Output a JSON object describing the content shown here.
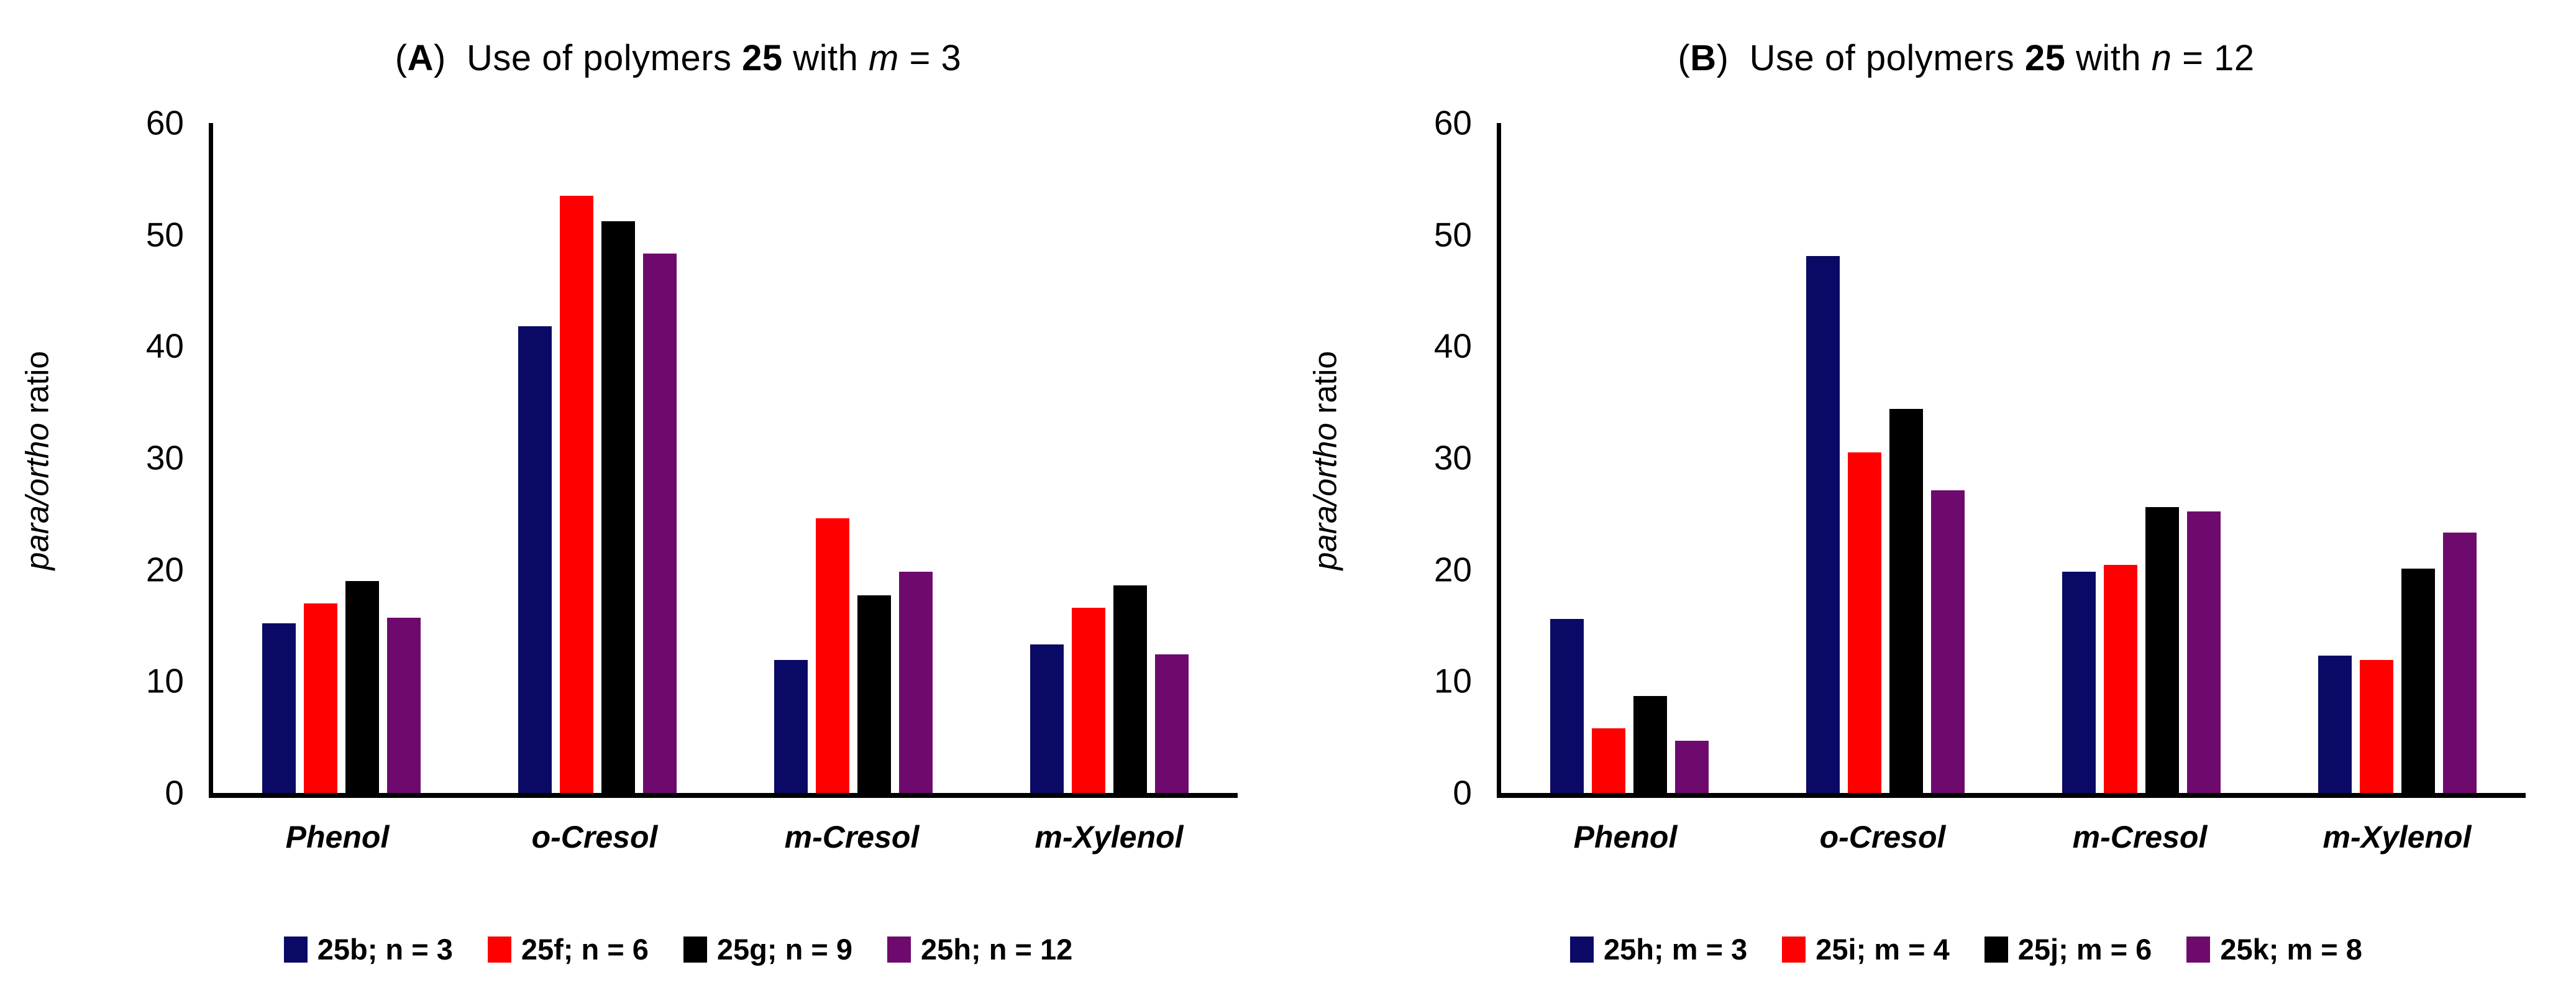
{
  "colors": {
    "navy": "#0A0A66",
    "red": "#FE0000",
    "black": "#000000",
    "purple": "#6E0A6E",
    "axis": "#000000",
    "background": "#FFFFFF"
  },
  "chart_data": [
    {
      "type": "bar",
      "panel": "A",
      "title_text": "(A)  Use of polymers 25 with m = 3",
      "title_segments": [
        {
          "text": "(",
          "style": "normal"
        },
        {
          "text": "A",
          "style": "bold"
        },
        {
          "text": ")  Use of polymers ",
          "style": "normal"
        },
        {
          "text": "25",
          "style": "bold"
        },
        {
          "text": " with ",
          "style": "normal"
        },
        {
          "text": "m",
          "style": "italic"
        },
        {
          "text": " = 3",
          "style": "normal"
        }
      ],
      "ylabel_italic": "para/ortho",
      "ylabel_regular": " ratio",
      "ylim": [
        0,
        60
      ],
      "yticks": [
        0,
        10,
        20,
        30,
        40,
        50,
        60
      ],
      "grid": false,
      "legend_position": "bottom",
      "categories": [
        "Phenol",
        "o-Cresol",
        "m-Cresol",
        "m-Xylenol"
      ],
      "series": [
        {
          "name": "25b; n = 3",
          "color_key": "navy",
          "values": [
            15.2,
            41.8,
            11.9,
            13.3
          ]
        },
        {
          "name": "25f; n = 6",
          "color_key": "red",
          "values": [
            17.0,
            53.5,
            24.6,
            16.6
          ]
        },
        {
          "name": "25g; n = 9",
          "color_key": "black",
          "values": [
            19.0,
            51.2,
            17.7,
            18.6
          ]
        },
        {
          "name": "25h; n = 12",
          "color_key": "purple",
          "values": [
            15.7,
            48.3,
            19.8,
            12.4
          ]
        }
      ]
    },
    {
      "type": "bar",
      "panel": "B",
      "title_text": "(B)  Use of polymers 25 with n = 12",
      "title_segments": [
        {
          "text": "(",
          "style": "normal"
        },
        {
          "text": "B",
          "style": "bold"
        },
        {
          "text": ")  Use of polymers ",
          "style": "normal"
        },
        {
          "text": "25",
          "style": "bold"
        },
        {
          "text": " with ",
          "style": "normal"
        },
        {
          "text": "n",
          "style": "italic"
        },
        {
          "text": " = 12",
          "style": "normal"
        }
      ],
      "ylabel_italic": "para/ortho",
      "ylabel_regular": " ratio",
      "ylim": [
        0,
        60
      ],
      "yticks": [
        0,
        10,
        20,
        30,
        40,
        50,
        60
      ],
      "grid": false,
      "legend_position": "bottom",
      "categories": [
        "Phenol",
        "o-Cresol",
        "m-Cresol",
        "m-Xylenol"
      ],
      "series": [
        {
          "name": "25h; m = 3",
          "color_key": "navy",
          "values": [
            15.6,
            48.1,
            19.8,
            12.3
          ]
        },
        {
          "name": "25i; m = 4",
          "color_key": "red",
          "values": [
            5.8,
            30.5,
            20.4,
            11.9
          ]
        },
        {
          "name": "25j; m = 6",
          "color_key": "black",
          "values": [
            8.7,
            34.4,
            25.6,
            20.1
          ]
        },
        {
          "name": "25k; m = 8",
          "color_key": "purple",
          "values": [
            4.7,
            27.1,
            25.2,
            23.3
          ]
        }
      ]
    }
  ]
}
